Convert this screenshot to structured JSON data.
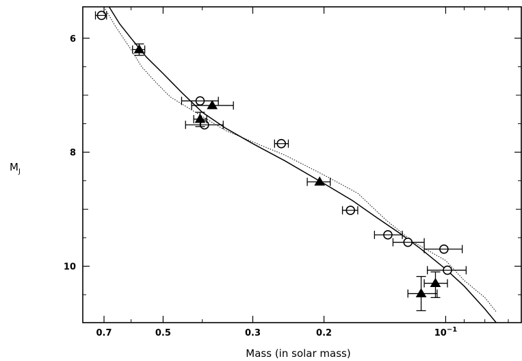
{
  "chart_data": {
    "type": "scatter",
    "title": "",
    "xlabel": "Mass (in solar mass)",
    "ylabel_main": "M",
    "ylabel_sub": "J",
    "x_scale": "log",
    "x_reversed": true,
    "xlim": [
      0.79,
      0.065
    ],
    "ylim": [
      5.45,
      10.99
    ],
    "y_reversed": true,
    "grid": false,
    "legend": "none",
    "x_ticks": [
      {
        "value": 0.7,
        "label": "0.7"
      },
      {
        "value": 0.5,
        "label": "0.5"
      },
      {
        "value": 0.3,
        "label": "0.3"
      },
      {
        "value": 0.2,
        "label": "0.2"
      },
      {
        "value": 0.1,
        "label": "10",
        "sup": "−1"
      }
    ],
    "y_ticks": [
      {
        "value": 6,
        "label": "6"
      },
      {
        "value": 8,
        "label": "8"
      },
      {
        "value": 10,
        "label": "10"
      }
    ],
    "series": [
      {
        "marker": "circle",
        "points": [
          {
            "x": 0.71,
            "y": 5.6,
            "xerr": [
              0.69,
              0.735
            ]
          },
          {
            "x": 0.405,
            "y": 7.1,
            "xerr": [
              0.365,
              0.45
            ]
          },
          {
            "x": 0.395,
            "y": 7.52,
            "xerr": [
              0.355,
              0.44
            ]
          },
          {
            "x": 0.255,
            "y": 7.85,
            "xerr": [
              0.245,
              0.265
            ]
          },
          {
            "x": 0.172,
            "y": 9.02,
            "xerr": [
              0.165,
              0.18
            ]
          },
          {
            "x": 0.139,
            "y": 9.45,
            "xerr": [
              0.128,
              0.15
            ]
          },
          {
            "x": 0.124,
            "y": 9.58,
            "xerr": [
              0.113,
              0.135
            ]
          },
          {
            "x": 0.101,
            "y": 9.7,
            "xerr": [
              0.091,
              0.113
            ]
          },
          {
            "x": 0.099,
            "y": 10.07,
            "xerr": [
              0.089,
              0.111
            ]
          }
        ]
      },
      {
        "marker": "triangle",
        "points": [
          {
            "x": 0.573,
            "y": 6.2,
            "xerr": [
              0.555,
              0.595
            ],
            "yerr": [
              6.1,
              6.3
            ]
          },
          {
            "x": 0.378,
            "y": 7.18,
            "xerr": [
              0.335,
              0.425
            ]
          },
          {
            "x": 0.405,
            "y": 7.42,
            "xerr": [
              0.39,
              0.42
            ],
            "yerr": [
              7.3,
              7.55
            ]
          },
          {
            "x": 0.205,
            "y": 8.52,
            "xerr": [
              0.193,
              0.22
            ]
          },
          {
            "x": 0.106,
            "y": 10.3,
            "xerr": [
              0.099,
              0.113
            ],
            "yerr": [
              10.1,
              10.55
            ]
          },
          {
            "x": 0.115,
            "y": 10.48,
            "xerr": [
              0.105,
              0.124
            ],
            "yerr": [
              10.18,
              10.78
            ]
          }
        ]
      }
    ],
    "curves": [
      {
        "style": "solid",
        "points": [
          {
            "x": 0.68,
            "y": 5.45
          },
          {
            "x": 0.64,
            "y": 5.75
          },
          {
            "x": 0.6,
            "y": 6.0
          },
          {
            "x": 0.55,
            "y": 6.33
          },
          {
            "x": 0.5,
            "y": 6.62
          },
          {
            "x": 0.45,
            "y": 6.95
          },
          {
            "x": 0.4,
            "y": 7.3
          },
          {
            "x": 0.35,
            "y": 7.58
          },
          {
            "x": 0.3,
            "y": 7.85
          },
          {
            "x": 0.25,
            "y": 8.15
          },
          {
            "x": 0.2,
            "y": 8.55
          },
          {
            "x": 0.17,
            "y": 8.85
          },
          {
            "x": 0.15,
            "y": 9.12
          },
          {
            "x": 0.13,
            "y": 9.42
          },
          {
            "x": 0.115,
            "y": 9.7
          },
          {
            "x": 0.1,
            "y": 10.05
          },
          {
            "x": 0.09,
            "y": 10.35
          },
          {
            "x": 0.08,
            "y": 10.75
          },
          {
            "x": 0.075,
            "y": 10.99
          }
        ]
      },
      {
        "style": "dotted",
        "points": [
          {
            "x": 0.7,
            "y": 5.45
          },
          {
            "x": 0.655,
            "y": 5.8
          },
          {
            "x": 0.6,
            "y": 6.2
          },
          {
            "x": 0.565,
            "y": 6.5
          },
          {
            "x": 0.52,
            "y": 6.78
          },
          {
            "x": 0.48,
            "y": 7.03
          },
          {
            "x": 0.42,
            "y": 7.28
          },
          {
            "x": 0.35,
            "y": 7.62
          },
          {
            "x": 0.3,
            "y": 7.82
          },
          {
            "x": 0.25,
            "y": 8.05
          },
          {
            "x": 0.2,
            "y": 8.4
          },
          {
            "x": 0.165,
            "y": 8.72
          },
          {
            "x": 0.14,
            "y": 9.2
          },
          {
            "x": 0.12,
            "y": 9.58
          },
          {
            "x": 0.1,
            "y": 9.9
          },
          {
            "x": 0.09,
            "y": 10.25
          },
          {
            "x": 0.08,
            "y": 10.55
          },
          {
            "x": 0.075,
            "y": 10.8
          }
        ]
      }
    ]
  }
}
